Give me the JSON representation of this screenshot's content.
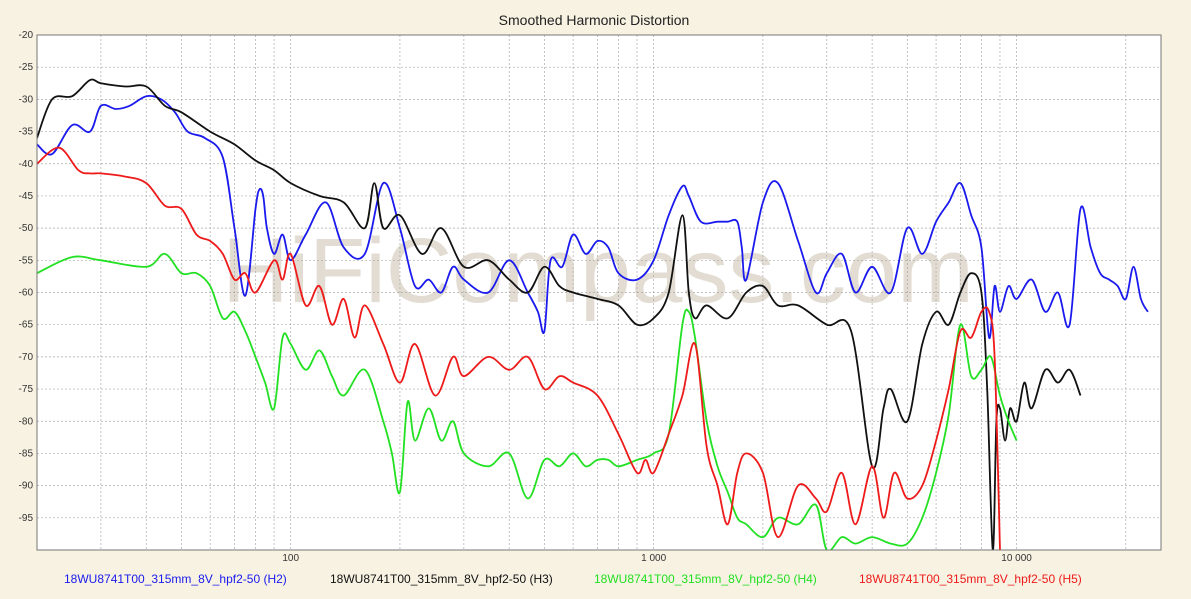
{
  "chart_data": {
    "type": "line",
    "title": "Smoothed Harmonic Distortion",
    "watermark": "HiFiCompass.com",
    "x_scale": "log",
    "xlim": [
      20,
      25000
    ],
    "ylim": [
      -100,
      -20
    ],
    "grid": true,
    "legend_placement": "bottom",
    "y_ticks": [
      -20,
      -25,
      -30,
      -35,
      -40,
      -45,
      -50,
      -55,
      -60,
      -65,
      -70,
      -75,
      -80,
      -85,
      -90,
      -95
    ],
    "y_tick_labels": [
      "-20",
      "-25",
      "-30",
      "-35",
      "-40",
      "-45",
      "-50",
      "-55",
      "-60",
      "-65",
      "-70",
      "-75",
      "-80",
      "-85",
      "-90",
      "-95"
    ],
    "x_ticks": [
      100,
      1000,
      10000
    ],
    "x_tick_labels": [
      "100",
      "1 000",
      "10 000"
    ],
    "colors": {
      "background": "#f7f2e2",
      "plot_background": "#ffffff",
      "grid": "#aaaaaa",
      "watermark": "#ddd6cb"
    },
    "series": [
      {
        "name": "18WU8741T00_315mm_8V_hpf2-50 (H2)",
        "color": "#1a1aee",
        "x": [
          20,
          22,
          25,
          28,
          30,
          33,
          36,
          40,
          44,
          48,
          52,
          58,
          65,
          70,
          75,
          80,
          82,
          84,
          86,
          90,
          95,
          100,
          110,
          125,
          140,
          160,
          180,
          200,
          220,
          240,
          260,
          280,
          300,
          350,
          400,
          450,
          480,
          500,
          520,
          560,
          600,
          650,
          700,
          750,
          800,
          900,
          1000,
          1100,
          1200,
          1250,
          1350,
          1500,
          1600,
          1700,
          1750,
          1800,
          2000,
          2200,
          2500,
          2800,
          3000,
          3300,
          3600,
          4000,
          4500,
          5000,
          5500,
          6000,
          6500,
          7000,
          7500,
          8000,
          8400,
          8700,
          9000,
          9500,
          10000,
          11000,
          12000,
          13000,
          14000,
          15000,
          16000,
          17000,
          18000,
          19000,
          20000,
          21000,
          22000,
          23000
        ],
        "y": [
          -37,
          -38.5,
          -34,
          -35,
          -31,
          -31.5,
          -31,
          -29.5,
          -30,
          -32,
          -35,
          -36,
          -39,
          -50,
          -60.5,
          -47,
          -44,
          -45,
          -50,
          -54,
          -51,
          -55,
          -51,
          -46,
          -53,
          -54,
          -43,
          -50,
          -59,
          -58,
          -60,
          -56,
          -58,
          -60,
          -55,
          -60,
          -63,
          -66,
          -55,
          -56,
          -51,
          -54,
          -52,
          -53,
          -57,
          -58,
          -55,
          -48,
          -43.5,
          -45,
          -49,
          -49,
          -49,
          -49,
          -53,
          -58,
          -46,
          -43,
          -52,
          -60,
          -57,
          -54,
          -60,
          -56,
          -60,
          -50,
          -54,
          -49,
          -46,
          -43,
          -48,
          -53,
          -67,
          -59,
          -63,
          -59,
          -61,
          -58,
          -63,
          -60,
          -65,
          -47,
          -53,
          -57,
          -58,
          -59,
          -61,
          -56,
          -61,
          -63
        ]
      },
      {
        "name": "18WU8741T00_315mm_8V_hpf2-50 (H3)",
        "color": "#111111",
        "x": [
          20,
          22,
          25,
          28,
          30,
          35,
          40,
          45,
          50,
          60,
          70,
          80,
          90,
          100,
          120,
          140,
          160,
          170,
          180,
          200,
          230,
          260,
          300,
          350,
          400,
          450,
          500,
          550,
          600,
          700,
          800,
          900,
          1000,
          1100,
          1200,
          1250,
          1300,
          1400,
          1600,
          1800,
          2000,
          2200,
          2500,
          3000,
          3500,
          4000,
          4300,
          4500,
          5000,
          5500,
          6000,
          6500,
          7000,
          7500,
          8000,
          8300,
          8600,
          8800,
          9000,
          9300,
          9600,
          10000,
          10500,
          11000,
          12000,
          13000,
          14000,
          15000
        ],
        "y": [
          -36,
          -30,
          -29.5,
          -27,
          -27.5,
          -28,
          -28,
          -31,
          -32,
          -35,
          -37,
          -39.5,
          -41,
          -43,
          -45,
          -46,
          -50,
          -43,
          -50,
          -48,
          -54,
          -50,
          -56,
          -55,
          -58,
          -60,
          -56,
          -59,
          -60,
          -61,
          -62,
          -65,
          -64,
          -60,
          -48,
          -60,
          -64,
          -62,
          -64,
          -60,
          -59,
          -62,
          -62,
          -65,
          -66,
          -87,
          -78,
          -75,
          -80,
          -68,
          -63,
          -65,
          -60,
          -57,
          -60,
          -75,
          -100,
          -80,
          -78,
          -83,
          -78,
          -80,
          -74,
          -78,
          -72,
          -74,
          -72,
          -76
        ]
      },
      {
        "name": "18WU8741T00_315mm_8V_hpf2-50 (H4)",
        "color": "#22e022",
        "x": [
          20,
          25,
          30,
          40,
          45,
          50,
          55,
          60,
          65,
          70,
          75,
          80,
          85,
          90,
          95,
          100,
          110,
          120,
          130,
          140,
          160,
          180,
          190,
          200,
          210,
          220,
          240,
          260,
          280,
          300,
          350,
          400,
          450,
          500,
          550,
          600,
          650,
          700,
          750,
          800,
          900,
          1000,
          1100,
          1200,
          1250,
          1300,
          1400,
          1500,
          1600,
          1700,
          1800,
          2000,
          2200,
          2500,
          2800,
          3000,
          3300,
          3600,
          4000,
          4500,
          5000,
          5500,
          6000,
          6500,
          7000,
          7500,
          8000,
          8500,
          9000,
          9500,
          10000
        ],
        "y": [
          -57,
          -54.5,
          -55,
          -56,
          -54,
          -57,
          -57,
          -59,
          -64,
          -63,
          -66,
          -70,
          -74,
          -78,
          -67,
          -68,
          -72,
          -69,
          -73,
          -76,
          -72,
          -80,
          -85,
          -91,
          -77,
          -83,
          -78,
          -83,
          -80,
          -85,
          -87,
          -85,
          -92,
          -86,
          -87,
          -85,
          -87,
          -86,
          -86,
          -87,
          -86,
          -85,
          -82,
          -65,
          -63,
          -67,
          -80,
          -87,
          -91,
          -95,
          -96,
          -98,
          -95,
          -96,
          -93,
          -100,
          -98,
          -99,
          -98,
          -99,
          -99,
          -95,
          -88,
          -79,
          -65,
          -73,
          -72,
          -70,
          -76,
          -80,
          -83
        ]
      },
      {
        "name": "18WU8741T00_315mm_8V_hpf2-50 (H5)",
        "color": "#ee1a1a",
        "x": [
          20,
          23,
          26,
          28,
          30,
          35,
          40,
          45,
          50,
          55,
          60,
          65,
          70,
          75,
          80,
          90,
          95,
          100,
          110,
          120,
          130,
          140,
          150,
          160,
          180,
          200,
          220,
          250,
          280,
          300,
          350,
          400,
          450,
          500,
          550,
          600,
          700,
          800,
          900,
          950,
          1000,
          1100,
          1200,
          1300,
          1400,
          1500,
          1600,
          1700,
          1800,
          2000,
          2200,
          2500,
          2800,
          3000,
          3300,
          3600,
          4000,
          4300,
          4600,
          5000,
          5500,
          6000,
          6500,
          7000,
          7500,
          8000,
          8400,
          8700,
          9000
        ],
        "y": [
          -40,
          -37.5,
          -41,
          -41.5,
          -41.5,
          -42,
          -43,
          -46.5,
          -47,
          -51,
          -52,
          -54,
          -58,
          -57,
          -60,
          -55,
          -58,
          -54,
          -62,
          -59,
          -65,
          -61,
          -67,
          -62,
          -68,
          -74,
          -68,
          -76,
          -70,
          -73,
          -70,
          -72,
          -70,
          -75,
          -73,
          -74,
          -76,
          -82,
          -88,
          -86,
          -88,
          -82,
          -76,
          -68,
          -84,
          -90,
          -96,
          -88,
          -85,
          -88,
          -98,
          -90,
          -92,
          -94,
          -88,
          -96,
          -87,
          -95,
          -88,
          -92,
          -90,
          -83,
          -75,
          -66,
          -67,
          -63,
          -63,
          -70,
          -100
        ]
      }
    ]
  }
}
